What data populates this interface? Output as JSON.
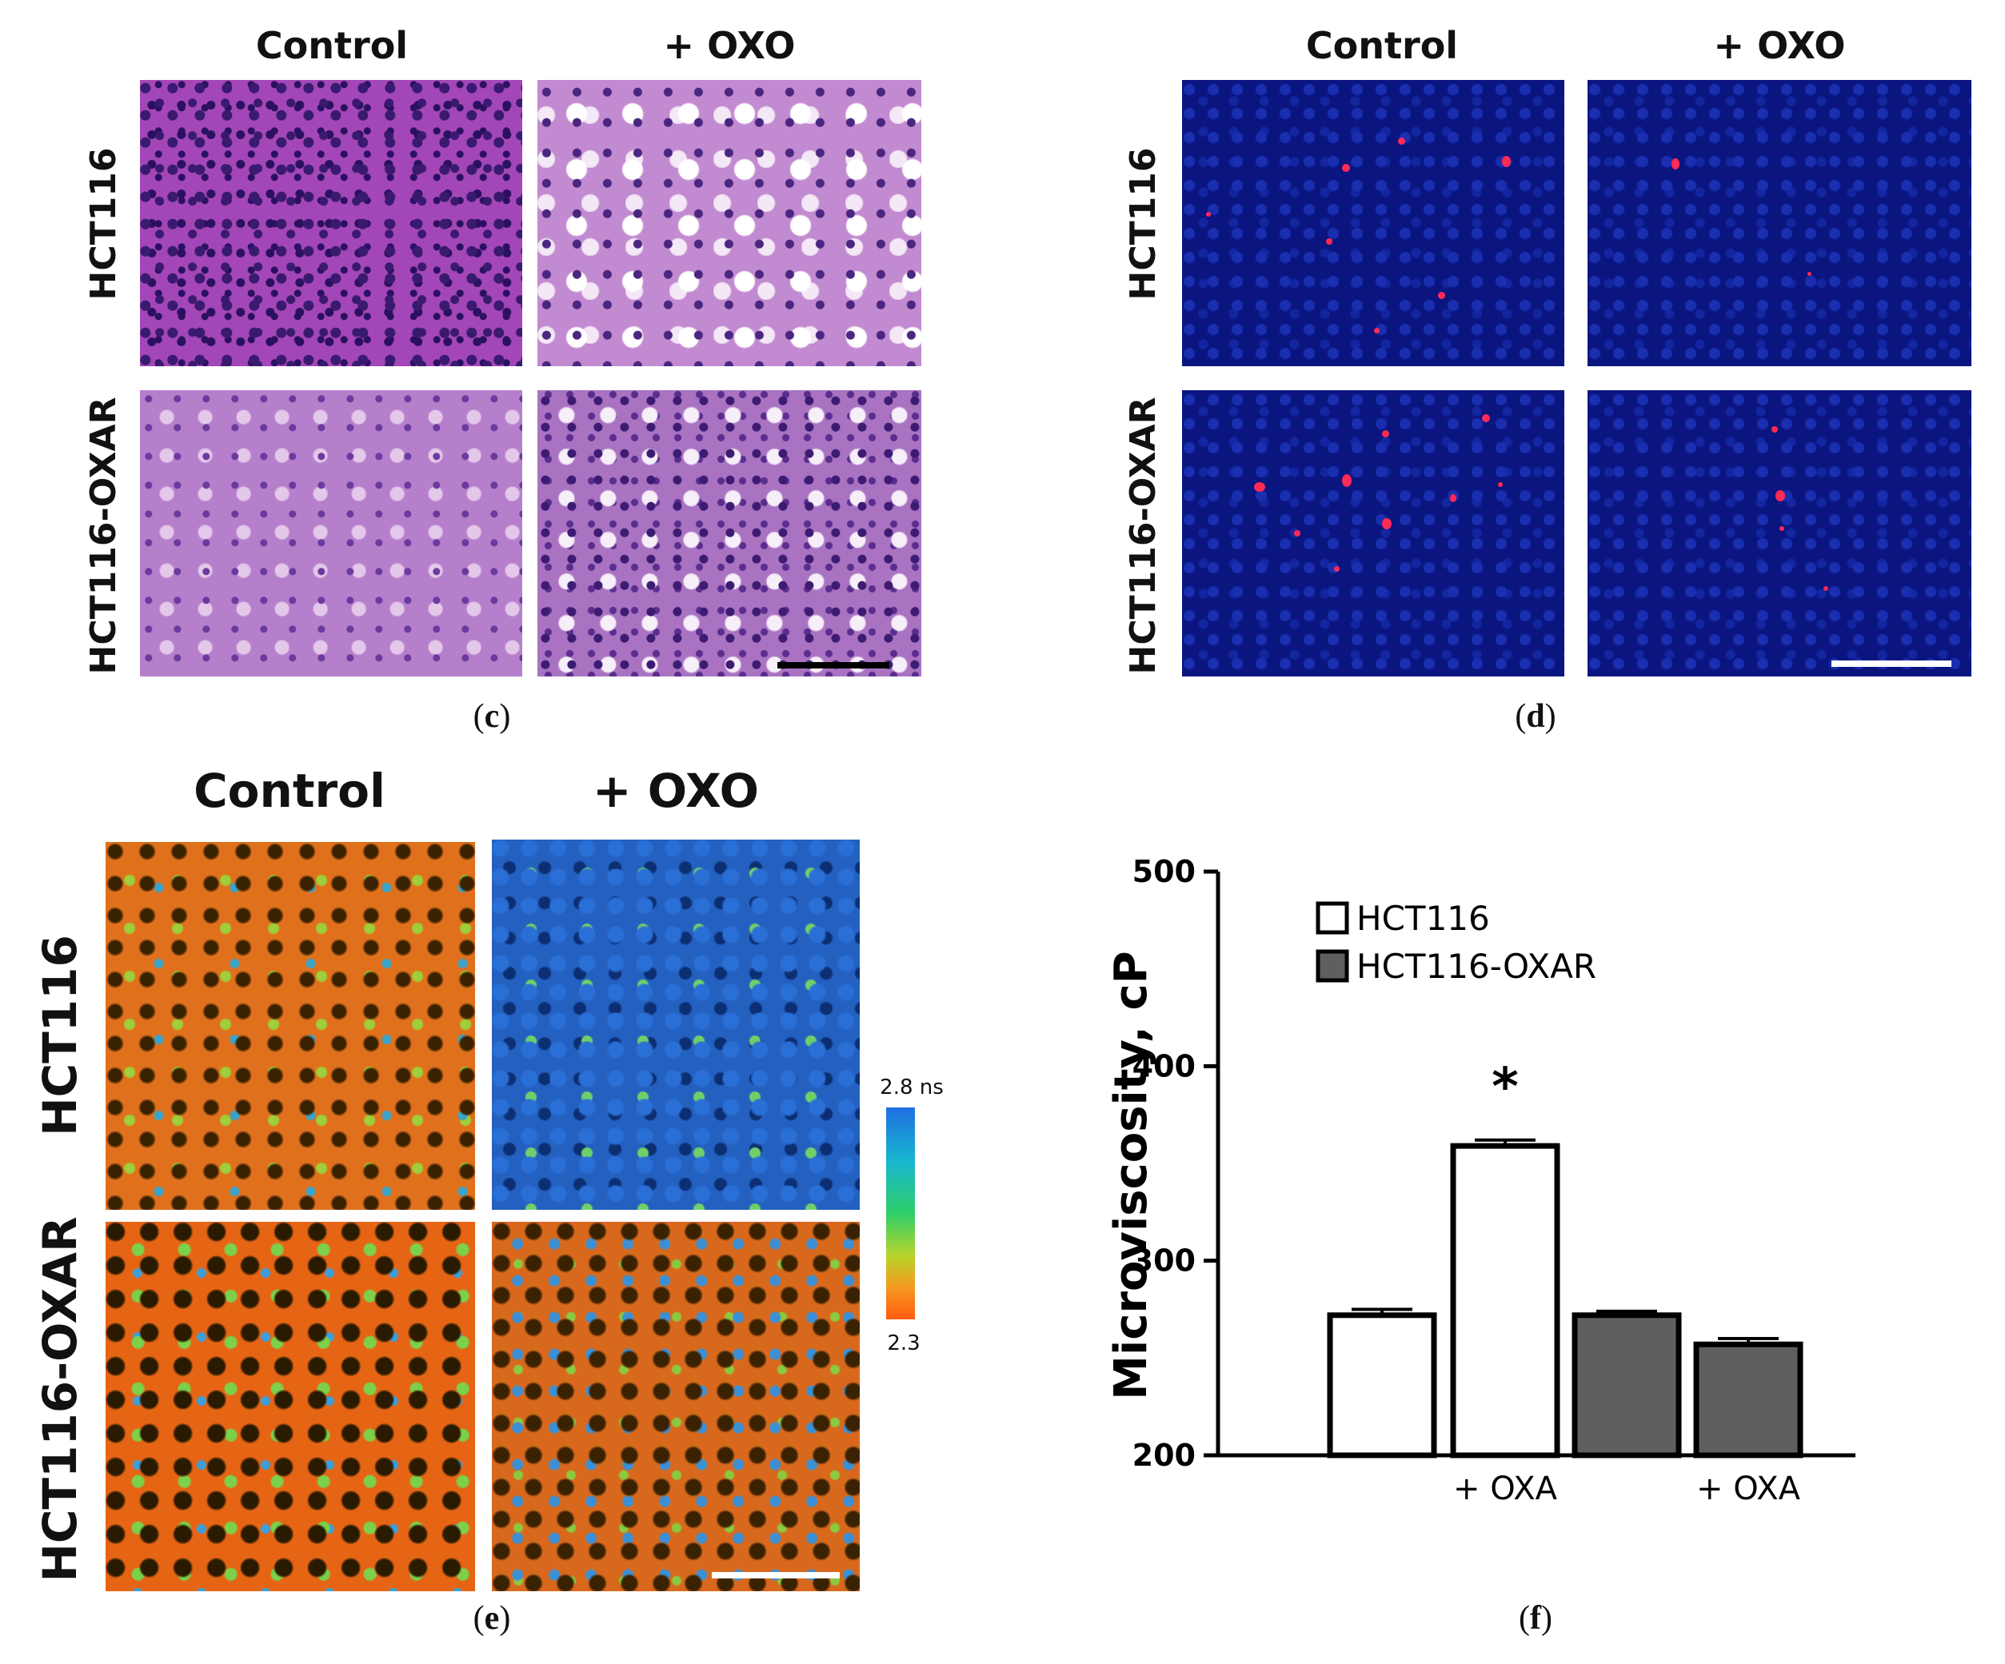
{
  "panels": {
    "c": {
      "caption_letter": "c",
      "col_labels": [
        "Control",
        "+ OXO"
      ],
      "row_labels": [
        "HCT116",
        "HCT116-OXAR"
      ]
    },
    "d": {
      "caption_letter": "d",
      "col_labels": [
        "Control",
        "+ OXO"
      ],
      "row_labels": [
        "HCT116",
        "HCT116-OXAR"
      ]
    },
    "e": {
      "caption_letter": "e",
      "col_labels": [
        "Control",
        "+ OXO"
      ],
      "row_labels": [
        "HCT116",
        "HCT116-OXAR"
      ],
      "colorbar": {
        "top_label": "2.8 ns",
        "bottom_label": "2.3"
      }
    },
    "f": {
      "caption_letter": "f"
    }
  },
  "chart_data": {
    "type": "bar",
    "title": "",
    "xlabel": "",
    "ylabel": "Microviscosity, cP",
    "ylim": [
      200,
      500
    ],
    "yticks": [
      200,
      300,
      400,
      500
    ],
    "categories": [
      "",
      "+ OXA",
      "",
      "+ OXA"
    ],
    "bars": [
      {
        "group": "HCT116",
        "label": "",
        "value": 272,
        "error": 3
      },
      {
        "group": "HCT116",
        "label": "+ OXA",
        "value": 359,
        "error": 3,
        "annotation": "*"
      },
      {
        "group": "HCT116-OXAR",
        "label": "",
        "value": 272,
        "error": 2
      },
      {
        "group": "HCT116-OXAR",
        "label": "+ OXA",
        "value": 257,
        "error": 3
      }
    ],
    "legend": [
      {
        "name": "HCT116",
        "color": "#ffffff"
      },
      {
        "name": "HCT116-OXAR",
        "color": "#5f5f5f"
      }
    ],
    "legend_position": "top-left",
    "grid": false
  }
}
